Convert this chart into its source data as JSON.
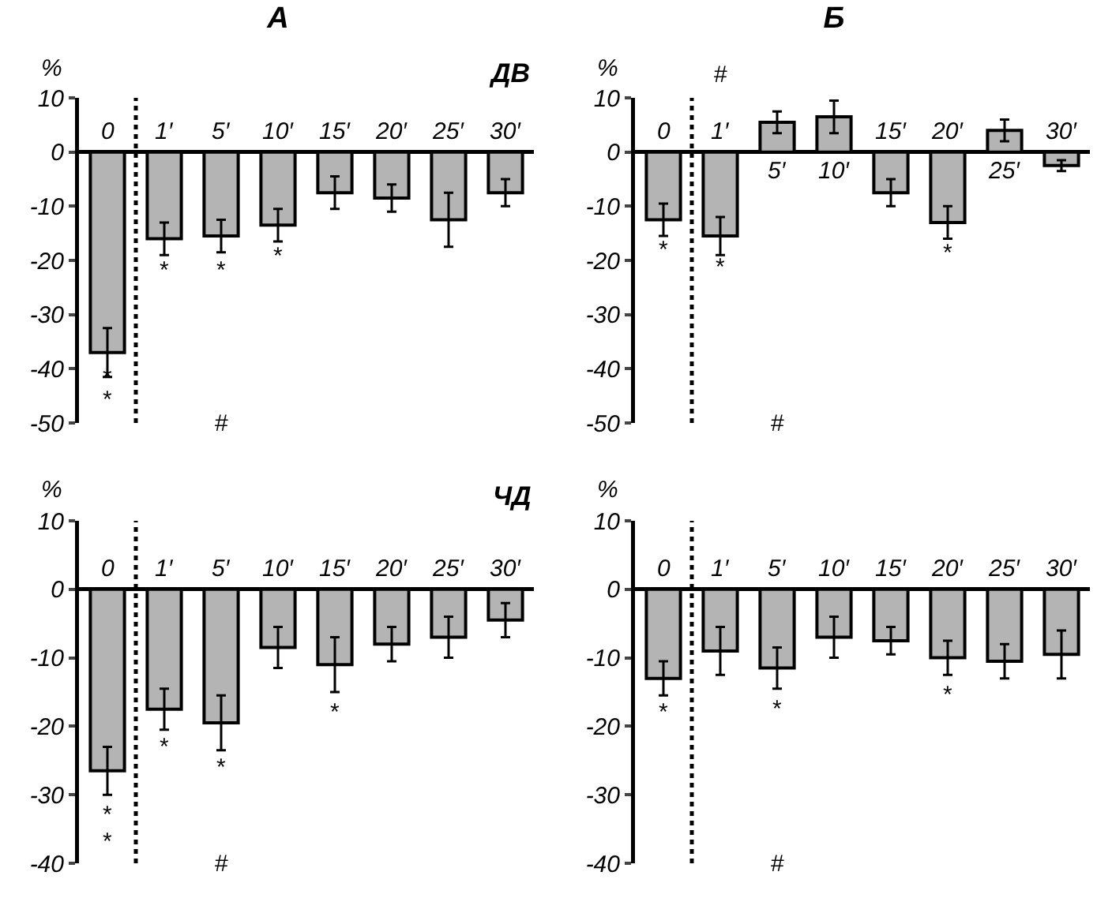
{
  "chart_data": [
    {
      "type": "bar",
      "title": "А",
      "ylabel": "%",
      "categories": [
        "0",
        "1′",
        "5′",
        "10′",
        "15′",
        "20′",
        "25′",
        "30′"
      ],
      "color": "#b4b4b4",
      "values": [
        -37,
        -16,
        -15.5,
        -13.5,
        -7.5,
        -8.5,
        -12.5,
        -7.5
      ],
      "errors": [
        4.5,
        3,
        3,
        3,
        3,
        2.5,
        5,
        2.5
      ],
      "ylim": [
        -50,
        10
      ],
      "yticks": [
        -50,
        -40,
        -30,
        -20,
        -10,
        0,
        10
      ],
      "grid": false,
      "annotations": [
        "ДВ",
        "*",
        "*",
        "*",
        "*",
        "*",
        "#"
      ]
    },
    {
      "type": "bar",
      "title": "Б",
      "ylabel": "%",
      "categories": [
        "0",
        "1′",
        "5′",
        "10′",
        "15′",
        "20′",
        "25′",
        "30′"
      ],
      "color": "#b4b4b4",
      "values": [
        -12.5,
        -15.5,
        5.5,
        6.5,
        -7.5,
        -13,
        4,
        -2.5
      ],
      "errors": [
        3,
        3.5,
        2,
        3,
        2.5,
        3,
        2,
        1
      ],
      "ylim": [
        -50,
        10
      ],
      "yticks": [
        -50,
        -40,
        -30,
        -20,
        -10,
        0,
        10
      ],
      "grid": false,
      "annotations": [
        "*",
        "*",
        "*",
        "#",
        "#"
      ]
    },
    {
      "type": "bar",
      "ylabel": "%",
      "categories": [
        "0",
        "1′",
        "5′",
        "10′",
        "15′",
        "20′",
        "25′",
        "30′"
      ],
      "color": "#b4b4b4",
      "values": [
        -26.5,
        -17.5,
        -19.5,
        -8.5,
        -11,
        -8,
        -7,
        -4.5
      ],
      "errors": [
        3.5,
        3,
        4,
        3,
        4,
        2.5,
        3,
        2.5
      ],
      "ylim": [
        -40,
        10
      ],
      "yticks": [
        -40,
        -30,
        -20,
        -10,
        0,
        10
      ],
      "grid": false,
      "annotations": [
        "ЧД",
        "*",
        "*",
        "*",
        "*",
        "*",
        "#"
      ]
    },
    {
      "type": "bar",
      "ylabel": "%",
      "categories": [
        "0",
        "1′",
        "5′",
        "10′",
        "15′",
        "20′",
        "25′",
        "30′"
      ],
      "color": "#b4b4b4",
      "values": [
        -13,
        -9,
        -11.5,
        -7,
        -7.5,
        -10,
        -10.5,
        -9.5
      ],
      "errors": [
        2.5,
        3.5,
        3,
        3,
        2,
        2.5,
        2.5,
        3.5
      ],
      "ylim": [
        -40,
        10
      ],
      "yticks": [
        -40,
        -30,
        -20,
        -10,
        0,
        10
      ],
      "grid": false,
      "annotations": [
        "*",
        "*",
        "*",
        "#"
      ]
    }
  ]
}
